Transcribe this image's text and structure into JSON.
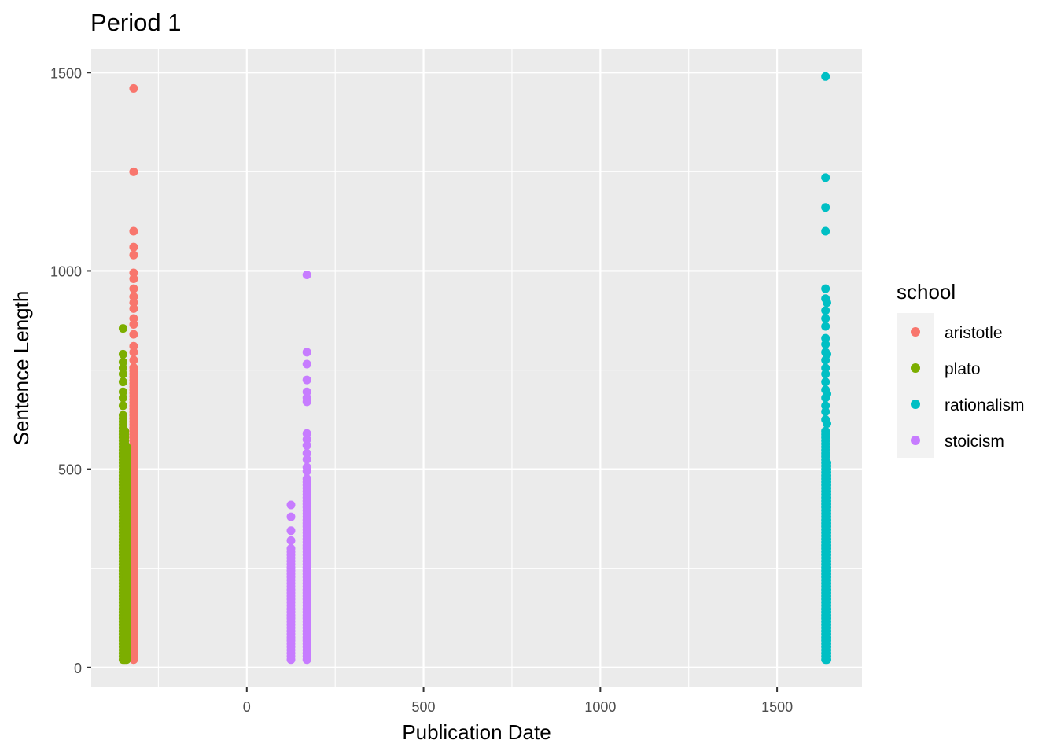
{
  "chart_data": {
    "type": "scatter",
    "title": "Period 1",
    "xlabel": "Publication Date",
    "ylabel": "Sentence Length",
    "xlim": [
      -440,
      1740
    ],
    "ylim": [
      -50,
      1560
    ],
    "x_ticks": [
      0,
      500,
      1000,
      1500
    ],
    "y_ticks": [
      0,
      500,
      1000,
      1500
    ],
    "grid": true,
    "legend": {
      "title": "school",
      "position": "right"
    },
    "series": [
      {
        "name": "aristotle",
        "color": "#F8766D",
        "columns": [
          {
            "x": -320,
            "min": 20,
            "max": 760
          }
        ],
        "points": [
          {
            "x": -320,
            "y": 1460
          },
          {
            "x": -320,
            "y": 1250
          },
          {
            "x": -320,
            "y": 1100
          },
          {
            "x": -320,
            "y": 1060
          },
          {
            "x": -320,
            "y": 1040
          },
          {
            "x": -320,
            "y": 995
          },
          {
            "x": -320,
            "y": 980
          },
          {
            "x": -320,
            "y": 955
          },
          {
            "x": -320,
            "y": 935
          },
          {
            "x": -320,
            "y": 920
          },
          {
            "x": -320,
            "y": 905
          },
          {
            "x": -320,
            "y": 880
          },
          {
            "x": -320,
            "y": 865
          },
          {
            "x": -320,
            "y": 840
          },
          {
            "x": -320,
            "y": 810
          },
          {
            "x": -320,
            "y": 795
          },
          {
            "x": -320,
            "y": 775
          }
        ]
      },
      {
        "name": "plato",
        "color": "#7CAE00",
        "columns": [
          {
            "x": -350,
            "min": 20,
            "max": 640
          },
          {
            "x": -345,
            "min": 20,
            "max": 600
          },
          {
            "x": -340,
            "min": 20,
            "max": 560
          }
        ],
        "points": [
          {
            "x": -350,
            "y": 855
          },
          {
            "x": -350,
            "y": 790
          },
          {
            "x": -350,
            "y": 770
          },
          {
            "x": -350,
            "y": 755
          },
          {
            "x": -350,
            "y": 740
          },
          {
            "x": -350,
            "y": 720
          },
          {
            "x": -350,
            "y": 695
          },
          {
            "x": -350,
            "y": 680
          },
          {
            "x": -350,
            "y": 660
          }
        ]
      },
      {
        "name": "rationalism",
        "color": "#00BFC4",
        "columns": [
          {
            "x": 1637,
            "min": 20,
            "max": 600
          },
          {
            "x": 1641,
            "min": 20,
            "max": 520
          }
        ],
        "points": [
          {
            "x": 1637,
            "y": 1490
          },
          {
            "x": 1637,
            "y": 1235
          },
          {
            "x": 1637,
            "y": 1160
          },
          {
            "x": 1637,
            "y": 1100
          },
          {
            "x": 1637,
            "y": 955
          },
          {
            "x": 1637,
            "y": 930
          },
          {
            "x": 1641,
            "y": 920
          },
          {
            "x": 1637,
            "y": 900
          },
          {
            "x": 1637,
            "y": 880
          },
          {
            "x": 1637,
            "y": 860
          },
          {
            "x": 1637,
            "y": 830
          },
          {
            "x": 1637,
            "y": 815
          },
          {
            "x": 1637,
            "y": 795
          },
          {
            "x": 1641,
            "y": 790
          },
          {
            "x": 1637,
            "y": 775
          },
          {
            "x": 1637,
            "y": 755
          },
          {
            "x": 1637,
            "y": 740
          },
          {
            "x": 1637,
            "y": 720
          },
          {
            "x": 1637,
            "y": 700
          },
          {
            "x": 1641,
            "y": 690
          },
          {
            "x": 1637,
            "y": 680
          },
          {
            "x": 1637,
            "y": 660
          },
          {
            "x": 1637,
            "y": 645
          },
          {
            "x": 1637,
            "y": 625
          },
          {
            "x": 1641,
            "y": 615
          }
        ]
      },
      {
        "name": "stoicism",
        "color": "#C77CFF",
        "columns": [
          {
            "x": 125,
            "min": 20,
            "max": 300
          },
          {
            "x": 170,
            "min": 20,
            "max": 480
          }
        ],
        "points": [
          {
            "x": 125,
            "y": 410
          },
          {
            "x": 125,
            "y": 380
          },
          {
            "x": 125,
            "y": 345
          },
          {
            "x": 125,
            "y": 320
          },
          {
            "x": 170,
            "y": 990
          },
          {
            "x": 170,
            "y": 795
          },
          {
            "x": 170,
            "y": 765
          },
          {
            "x": 170,
            "y": 725
          },
          {
            "x": 170,
            "y": 695
          },
          {
            "x": 170,
            "y": 680
          },
          {
            "x": 170,
            "y": 670
          },
          {
            "x": 170,
            "y": 590
          },
          {
            "x": 170,
            "y": 575
          },
          {
            "x": 170,
            "y": 560
          },
          {
            "x": 170,
            "y": 540
          },
          {
            "x": 170,
            "y": 525
          },
          {
            "x": 170,
            "y": 505
          },
          {
            "x": 170,
            "y": 495
          }
        ]
      }
    ]
  }
}
